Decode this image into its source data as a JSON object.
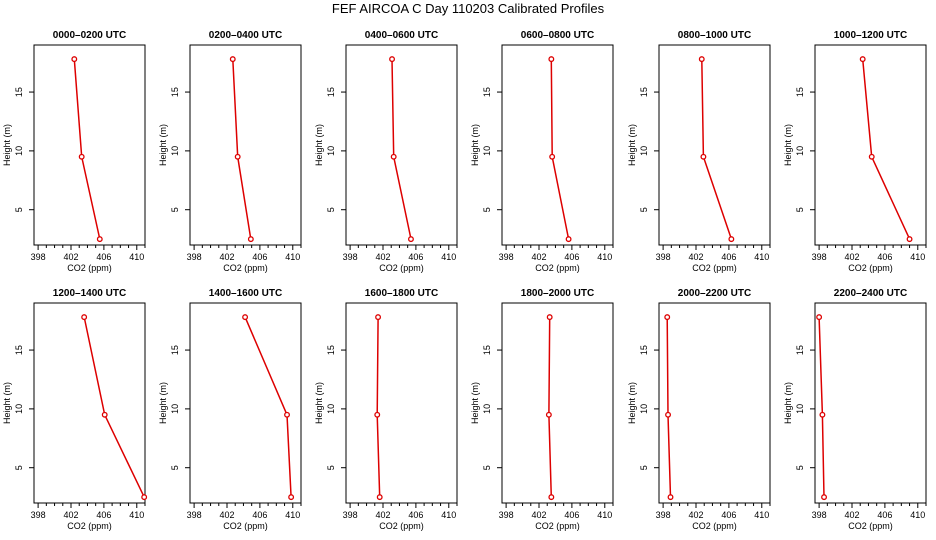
{
  "title": "FEF AIRCOA C  Day 110203  Calibrated Profiles",
  "colors": {
    "line": "#dd0000",
    "marker": "#dd0000",
    "axis": "#000000"
  },
  "chart_data": [
    {
      "type": "line",
      "title": "0000–0200 UTC",
      "xlabel": "CO2 (ppm)",
      "ylabel": "Height (m)",
      "xlim": [
        397.5,
        411
      ],
      "ylim": [
        2,
        19
      ],
      "xticks": [
        "398",
        "402",
        "406",
        "410"
      ],
      "yticks": [
        "5",
        "10",
        "15"
      ],
      "x": [
        405.5,
        403.3,
        402.4
      ],
      "y": [
        2.5,
        9.5,
        17.8
      ]
    },
    {
      "type": "line",
      "title": "0200–0400 UTC",
      "xlabel": "CO2 (ppm)",
      "ylabel": "Height (m)",
      "xlim": [
        397.5,
        411
      ],
      "ylim": [
        2,
        19
      ],
      "xticks": [
        "398",
        "402",
        "406",
        "410"
      ],
      "yticks": [
        "5",
        "10",
        "15"
      ],
      "x": [
        404.9,
        403.3,
        402.7
      ],
      "y": [
        2.5,
        9.5,
        17.8
      ]
    },
    {
      "type": "line",
      "title": "0400–0600 UTC",
      "xlabel": "CO2 (ppm)",
      "ylabel": "Height (m)",
      "xlim": [
        397.5,
        411
      ],
      "ylim": [
        2,
        19
      ],
      "xticks": [
        "398",
        "402",
        "406",
        "410"
      ],
      "yticks": [
        "5",
        "10",
        "15"
      ],
      "x": [
        405.4,
        403.3,
        403.1
      ],
      "y": [
        2.5,
        9.5,
        17.8
      ]
    },
    {
      "type": "line",
      "title": "0600–0800 UTC",
      "xlabel": "CO2 (ppm)",
      "ylabel": "Height (m)",
      "xlim": [
        397.5,
        411
      ],
      "ylim": [
        2,
        19
      ],
      "xticks": [
        "398",
        "402",
        "406",
        "410"
      ],
      "yticks": [
        "5",
        "10",
        "15"
      ],
      "x": [
        405.6,
        403.6,
        403.5
      ],
      "y": [
        2.5,
        9.5,
        17.8
      ]
    },
    {
      "type": "line",
      "title": "0800–1000 UTC",
      "xlabel": "CO2 (ppm)",
      "ylabel": "Height (m)",
      "xlim": [
        397.5,
        411
      ],
      "ylim": [
        2,
        19
      ],
      "xticks": [
        "398",
        "402",
        "406",
        "410"
      ],
      "yticks": [
        "5",
        "10",
        "15"
      ],
      "x": [
        406.3,
        402.9,
        402.7
      ],
      "y": [
        2.5,
        9.5,
        17.8
      ]
    },
    {
      "type": "line",
      "title": "1000–1200 UTC",
      "xlabel": "CO2 (ppm)",
      "ylabel": "Height (m)",
      "xlim": [
        397.5,
        411
      ],
      "ylim": [
        2,
        19
      ],
      "xticks": [
        "398",
        "402",
        "406",
        "410"
      ],
      "yticks": [
        "5",
        "10",
        "15"
      ],
      "x": [
        409.0,
        404.4,
        403.3
      ],
      "y": [
        2.5,
        9.5,
        17.8
      ]
    },
    {
      "type": "line",
      "title": "1200–1400 UTC",
      "xlabel": "CO2 (ppm)",
      "ylabel": "Height (m)",
      "xlim": [
        397.5,
        411
      ],
      "ylim": [
        2,
        19
      ],
      "xticks": [
        "398",
        "402",
        "406",
        "410"
      ],
      "yticks": [
        "5",
        "10",
        "15"
      ],
      "x": [
        410.9,
        406.1,
        403.6
      ],
      "y": [
        2.5,
        9.5,
        17.8
      ]
    },
    {
      "type": "line",
      "title": "1400–1600 UTC",
      "xlabel": "CO2 (ppm)",
      "ylabel": "Height (m)",
      "xlim": [
        397.5,
        411
      ],
      "ylim": [
        2,
        19
      ],
      "xticks": [
        "398",
        "402",
        "406",
        "410"
      ],
      "yticks": [
        "5",
        "10",
        "15"
      ],
      "x": [
        409.8,
        409.3,
        404.2
      ],
      "y": [
        2.5,
        9.5,
        17.8
      ]
    },
    {
      "type": "line",
      "title": "1600–1800 UTC",
      "xlabel": "CO2 (ppm)",
      "ylabel": "Height (m)",
      "xlim": [
        397.5,
        411
      ],
      "ylim": [
        2,
        19
      ],
      "xticks": [
        "398",
        "402",
        "406",
        "410"
      ],
      "yticks": [
        "5",
        "10",
        "15"
      ],
      "x": [
        401.6,
        401.3,
        401.4
      ],
      "y": [
        2.5,
        9.5,
        17.8
      ]
    },
    {
      "type": "line",
      "title": "1800–2000 UTC",
      "xlabel": "CO2 (ppm)",
      "ylabel": "Height (m)",
      "xlim": [
        397.5,
        411
      ],
      "ylim": [
        2,
        19
      ],
      "xticks": [
        "398",
        "402",
        "406",
        "410"
      ],
      "yticks": [
        "5",
        "10",
        "15"
      ],
      "x": [
        403.5,
        403.2,
        403.3
      ],
      "y": [
        2.5,
        9.5,
        17.8
      ]
    },
    {
      "type": "line",
      "title": "2000–2200 UTC",
      "xlabel": "CO2 (ppm)",
      "ylabel": "Height (m)",
      "xlim": [
        397.5,
        411
      ],
      "ylim": [
        2,
        19
      ],
      "xticks": [
        "398",
        "402",
        "406",
        "410"
      ],
      "yticks": [
        "5",
        "10",
        "15"
      ],
      "x": [
        398.9,
        398.6,
        398.5
      ],
      "y": [
        2.5,
        9.5,
        17.8
      ]
    },
    {
      "type": "line",
      "title": "2200–2400 UTC",
      "xlabel": "CO2 (ppm)",
      "ylabel": "Height (m)",
      "xlim": [
        397.5,
        411
      ],
      "ylim": [
        2,
        19
      ],
      "xticks": [
        "398",
        "402",
        "406",
        "410"
      ],
      "yticks": [
        "5",
        "10",
        "15"
      ],
      "x": [
        398.6,
        398.4,
        398.0
      ],
      "y": [
        2.5,
        9.5,
        17.8
      ]
    }
  ]
}
